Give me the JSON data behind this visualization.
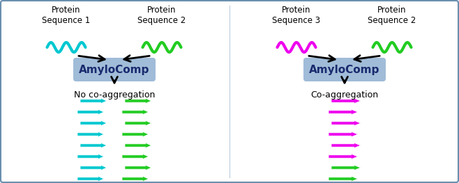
{
  "bg_color": "#e8eef5",
  "border_color": "#6a8faf",
  "panel_bg": "#ffffff",
  "left_panel": {
    "title_left": "Protein\nSequence 1",
    "title_right": "Protein\nSequence 2",
    "wave_left_color": "#00c8d0",
    "wave_right_color": "#22cc22",
    "box_label": "AmyloComp",
    "box_color": "#a0bcd8",
    "box_text_color": "#1a2a6e",
    "result_label": "No co-aggregation",
    "fibril_left_color": "#00c8d0",
    "fibril_right_color": "#22cc22",
    "interleaved": false
  },
  "right_panel": {
    "title_left": "Protein\nSequence 3",
    "title_right": "Protein\nSequence 2",
    "wave_left_color": "#ee00ee",
    "wave_right_color": "#22cc22",
    "box_label": "AmyloComp",
    "box_color": "#a0bcd8",
    "box_text_color": "#1a2a6e",
    "result_label": "Co-aggregation",
    "fibril_left_color": "#ee00ee",
    "fibril_right_color": "#22cc22",
    "interleaved": true
  },
  "font_size_label": 8.5,
  "font_size_box": 11,
  "font_size_result": 9,
  "arrow_color": "#000000"
}
